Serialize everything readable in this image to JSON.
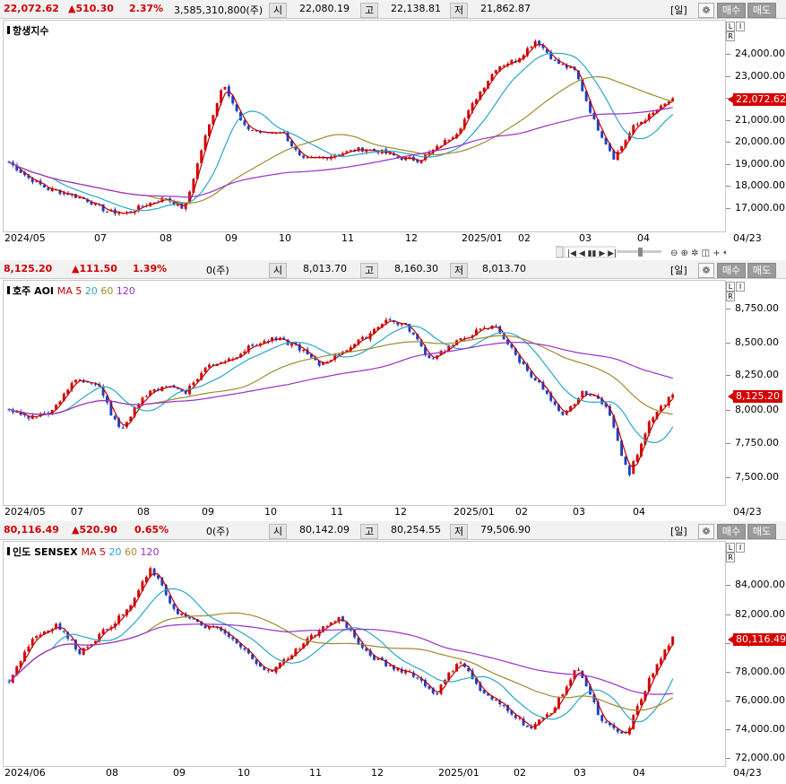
{
  "panels": [
    {
      "price": "22,072.62",
      "change": "▲510.30",
      "pct": "2.37%",
      "volume": "3,585,310,800(주)",
      "open_label": "시",
      "open": "22,080.19",
      "high_label": "고",
      "high": "22,138.81",
      "low_label": "저",
      "low": "21,862.87",
      "title": "항생지수",
      "ma_label": "",
      "ma_values": [],
      "y_ticks": [
        "24,000.00",
        "23,000.00",
        "22,000.00",
        "21,000.00",
        "20,000.00",
        "19,000.00",
        "18,000.00",
        "17,000.00"
      ],
      "current_tag": "22,072.62",
      "x_ticks": [
        "2024/05",
        "07",
        "08",
        "09",
        "10",
        "11",
        "12",
        "2025/01",
        "02",
        "03",
        "04"
      ],
      "right_date": "04/23"
    },
    {
      "price": "8,125.20",
      "change": "▲111.50",
      "pct": "1.39%",
      "volume": "0(주)",
      "open_label": "시",
      "open": "8,013.70",
      "high_label": "고",
      "high": "8,160.30",
      "low_label": "저",
      "low": "8,013.70",
      "title": "호주 AOI",
      "ma_label": "MA",
      "ma_values": [
        "5",
        "20",
        "60",
        "120"
      ],
      "y_ticks": [
        "8,750.00",
        "8,500.00",
        "8,250.00",
        "8,000.00",
        "7,750.00",
        "7,500.00"
      ],
      "current_tag": "8,125.20",
      "x_ticks": [
        "2024/05",
        "07",
        "08",
        "09",
        "10",
        "11",
        "12",
        "2025/01",
        "02",
        "03",
        "04"
      ],
      "right_date": "04/23"
    },
    {
      "price": "80,116.49",
      "change": "▲520.90",
      "pct": "0.65%",
      "volume": "0(주)",
      "open_label": "시",
      "open": "80,142.09",
      "high_label": "고",
      "high": "80,254.55",
      "low_label": "저",
      "low": "79,506.90",
      "title": "인도 SENSEX",
      "ma_label": "MA",
      "ma_values": [
        "5",
        "20",
        "60",
        "120"
      ],
      "y_ticks": [
        "84,000.00",
        "82,000.00",
        "80,000.00",
        "78,000.00",
        "76,000.00",
        "74,000.00",
        "72,000.00"
      ],
      "current_tag": "80,116.49",
      "x_ticks": [
        "2024/06",
        "08",
        "09",
        "10",
        "11",
        "12",
        "2025/01",
        "02",
        "03",
        "04"
      ],
      "right_date": "04/23"
    }
  ],
  "controls": {
    "period": "일",
    "buy": "매수",
    "sell": "매도"
  },
  "colors": {
    "up": "#d40000",
    "down": "#1a3fc8",
    "ma5": "#c00000",
    "ma20": "#2aa8c8",
    "ma60": "#a08a30",
    "ma120": "#9a30c8"
  },
  "chart_data": [
    {
      "type": "candlestick",
      "title": "항생지수",
      "ylim": [
        16500,
        25000
      ],
      "ma": {
        "5": "red",
        "20": "teal",
        "60": "olive",
        "120": "purple"
      },
      "x": [
        "2024/05",
        "07",
        "08",
        "09",
        "10",
        "11",
        "12",
        "2025/01",
        "02",
        "03",
        "04"
      ],
      "close_path": [
        19200,
        18500,
        18000,
        17800,
        17500,
        17000,
        16900,
        17300,
        17600,
        17100,
        20200,
        22800,
        20800,
        20500,
        20600,
        19300,
        19400,
        19600,
        19800,
        19700,
        19400,
        19300,
        19900,
        20600,
        22200,
        23500,
        23800,
        24700,
        23700,
        23300,
        21000,
        19400,
        20800,
        21400,
        22072
      ]
    },
    {
      "type": "candlestick",
      "title": "호주 AOI",
      "ylim": [
        7350,
        8900
      ],
      "x": [
        "2024/05",
        "07",
        "08",
        "09",
        "10",
        "11",
        "12",
        "2025/01",
        "02",
        "03",
        "04"
      ],
      "close_path": [
        8000,
        7950,
        8000,
        8250,
        8200,
        7850,
        8100,
        8200,
        8150,
        8350,
        8400,
        8500,
        8550,
        8500,
        8350,
        8450,
        8550,
        8700,
        8650,
        8400,
        8500,
        8600,
        8650,
        8400,
        8200,
        7950,
        8150,
        8050,
        7500,
        7950,
        8125
      ]
    },
    {
      "type": "candlestick",
      "title": "인도 SENSEX",
      "ylim": [
        71500,
        86000
      ],
      "x": [
        "2024/06",
        "08",
        "09",
        "10",
        "11",
        "12",
        "2025/01",
        "02",
        "03",
        "04"
      ],
      "close_path": [
        77000,
        80000,
        81000,
        79000,
        80500,
        82000,
        85000,
        82000,
        81000,
        80500,
        79000,
        77500,
        79000,
        80500,
        81500,
        79000,
        78000,
        77500,
        76000,
        78500,
        76000,
        75000,
        73500,
        75000,
        78000,
        74000,
        73000,
        77000,
        80116
      ]
    }
  ]
}
